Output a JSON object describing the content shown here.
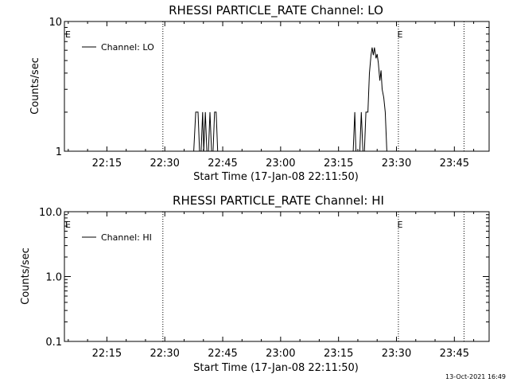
{
  "chart_data": [
    {
      "type": "line",
      "title": "RHESSI PARTICLE_RATE Channel: LO",
      "xlabel": "Start Time (17-Jan-08 22:11:50)",
      "ylabel": "Counts/sec",
      "y_scale": "log",
      "ylim": [
        1,
        10
      ],
      "y_ticks": [
        {
          "value": 1,
          "label": "1"
        },
        {
          "value": 10,
          "label": "10"
        }
      ],
      "x_ticks": [
        "22:15",
        "22:30",
        "22:45",
        "23:00",
        "23:15",
        "23:30",
        "23:45"
      ],
      "x_tick_minutes": [
        15,
        30,
        45,
        60,
        75,
        90,
        105
      ],
      "xlim_minutes": [
        4,
        114
      ],
      "grid": false,
      "legend": {
        "position": "top-left",
        "entries": [
          "Channel: LO"
        ]
      },
      "markers": [
        {
          "label": "E",
          "minute": 4
        },
        {
          "label": "E",
          "minute": 90
        }
      ],
      "vertical_lines_minutes": [
        29.5,
        90.5,
        107.5
      ],
      "series": [
        {
          "name": "Channel: LO",
          "points": [
            [
              37.5,
              1
            ],
            [
              38,
              2
            ],
            [
              38.6,
              2
            ],
            [
              39,
              1
            ],
            [
              39.4,
              1
            ],
            [
              39.8,
              2
            ],
            [
              40.1,
              1
            ],
            [
              40.5,
              2
            ],
            [
              40.9,
              1
            ],
            [
              41.3,
              1
            ],
            [
              41.7,
              2
            ],
            [
              42.1,
              1
            ],
            [
              42.5,
              1
            ],
            [
              42.9,
              2
            ],
            [
              43.3,
              2
            ],
            [
              43.7,
              1
            ],
            [
              78.8,
              1
            ],
            [
              79.2,
              2
            ],
            [
              79.5,
              1
            ],
            [
              80.5,
              1
            ],
            [
              80.9,
              2
            ],
            [
              81.3,
              1
            ],
            [
              81.7,
              1
            ],
            [
              82.1,
              2
            ],
            [
              82.6,
              2
            ],
            [
              83,
              4
            ],
            [
              83.4,
              5.5
            ],
            [
              83.7,
              6.3
            ],
            [
              84,
              5.5
            ],
            [
              84.3,
              6.3
            ],
            [
              84.7,
              5.2
            ],
            [
              85,
              5.6
            ],
            [
              85.3,
              4.8
            ],
            [
              85.7,
              3.5
            ],
            [
              86,
              4.2
            ],
            [
              86.3,
              3
            ],
            [
              86.7,
              2.6
            ],
            [
              87.1,
              2
            ],
            [
              87.5,
              1
            ]
          ]
        }
      ]
    },
    {
      "type": "line",
      "title": "RHESSI PARTICLE_RATE Channel: HI",
      "xlabel": "Start Time (17-Jan-08 22:11:50)",
      "ylabel": "Counts/sec",
      "y_scale": "log",
      "ylim": [
        0.1,
        10
      ],
      "y_ticks": [
        {
          "value": 0.1,
          "label": "0.1"
        },
        {
          "value": 1,
          "label": "1.0"
        },
        {
          "value": 10,
          "label": "10.0"
        }
      ],
      "x_ticks": [
        "22:15",
        "22:30",
        "22:45",
        "23:00",
        "23:15",
        "23:30",
        "23:45"
      ],
      "x_tick_minutes": [
        15,
        30,
        45,
        60,
        75,
        90,
        105
      ],
      "xlim_minutes": [
        4,
        114
      ],
      "grid": false,
      "legend": {
        "position": "top-left",
        "entries": [
          "Channel: HI"
        ]
      },
      "markers": [
        {
          "label": "E",
          "minute": 4
        },
        {
          "label": "E",
          "minute": 90
        }
      ],
      "vertical_lines_minutes": [
        29.5,
        90.5,
        107.5
      ],
      "series": [
        {
          "name": "Channel: HI",
          "points": []
        }
      ]
    }
  ],
  "footer": {
    "timestamp": "13-Oct-2021 16:49"
  }
}
